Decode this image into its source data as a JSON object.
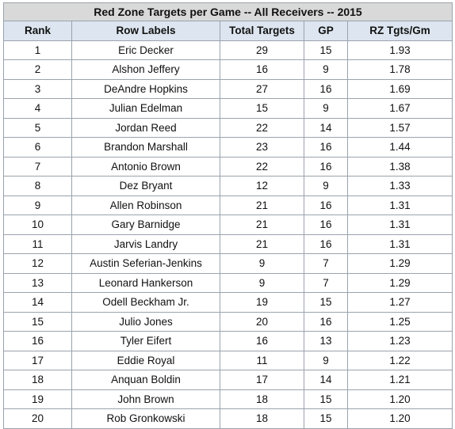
{
  "chart_data": {
    "type": "table",
    "title": "Red Zone Targets per Game -- All Receivers -- 2015",
    "columns": [
      "Rank",
      "Row Labels",
      "Total Targets",
      "GP",
      "RZ Tgts/Gm"
    ],
    "rows": [
      [
        "1",
        "Eric Decker",
        "29",
        "15",
        "1.93"
      ],
      [
        "2",
        "Alshon Jeffery",
        "16",
        "9",
        "1.78"
      ],
      [
        "3",
        "DeAndre Hopkins",
        "27",
        "16",
        "1.69"
      ],
      [
        "4",
        "Julian Edelman",
        "15",
        "9",
        "1.67"
      ],
      [
        "5",
        "Jordan Reed",
        "22",
        "14",
        "1.57"
      ],
      [
        "6",
        "Brandon Marshall",
        "23",
        "16",
        "1.44"
      ],
      [
        "7",
        "Antonio Brown",
        "22",
        "16",
        "1.38"
      ],
      [
        "8",
        "Dez Bryant",
        "12",
        "9",
        "1.33"
      ],
      [
        "9",
        "Allen Robinson",
        "21",
        "16",
        "1.31"
      ],
      [
        "10",
        "Gary Barnidge",
        "21",
        "16",
        "1.31"
      ],
      [
        "11",
        "Jarvis Landry",
        "21",
        "16",
        "1.31"
      ],
      [
        "12",
        "Austin Seferian-Jenkins",
        "9",
        "7",
        "1.29"
      ],
      [
        "13",
        "Leonard Hankerson",
        "9",
        "7",
        "1.29"
      ],
      [
        "14",
        "Odell Beckham Jr.",
        "19",
        "15",
        "1.27"
      ],
      [
        "15",
        "Julio Jones",
        "20",
        "16",
        "1.25"
      ],
      [
        "16",
        "Tyler Eifert",
        "16",
        "13",
        "1.23"
      ],
      [
        "17",
        "Eddie Royal",
        "11",
        "9",
        "1.22"
      ],
      [
        "18",
        "Anquan Boldin",
        "17",
        "14",
        "1.21"
      ],
      [
        "19",
        "John Brown",
        "18",
        "15",
        "1.20"
      ],
      [
        "20",
        "Rob Gronkowski",
        "18",
        "15",
        "1.20"
      ]
    ]
  },
  "colors": {
    "title_fill": "#d9d9d9",
    "header_fill": "#dde6f0",
    "border": "#9aa3ad"
  }
}
